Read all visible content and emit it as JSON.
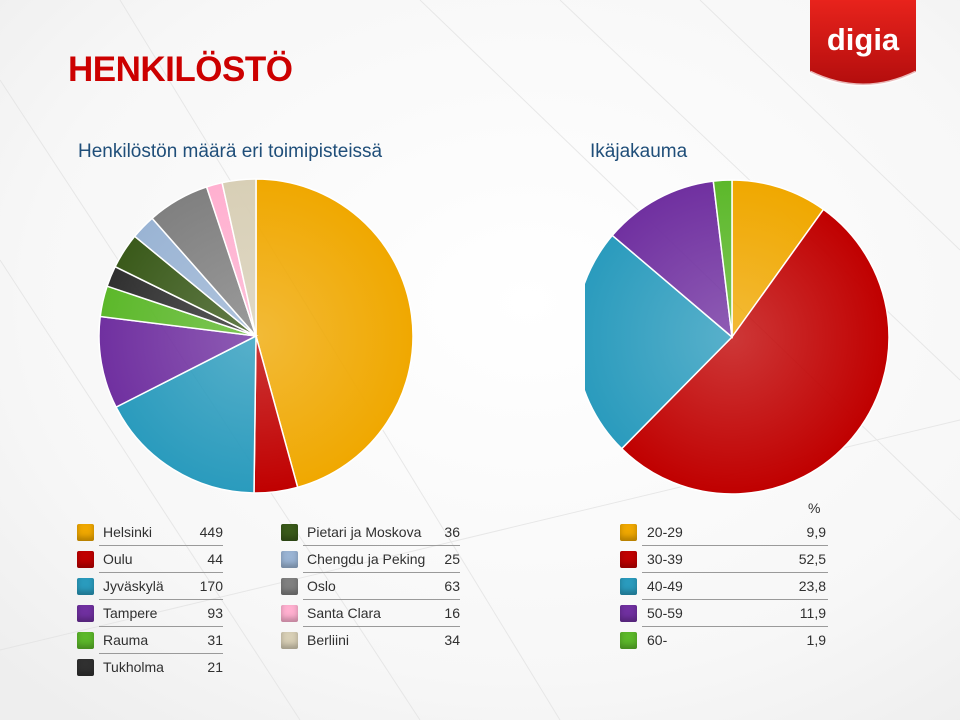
{
  "page": {
    "title": "HENKILÖSTÖ",
    "title_color": "#cc0000",
    "subtitle_color": "#1f4e79"
  },
  "logo": {
    "text": "digia",
    "color": "#d01010"
  },
  "chart_data": [
    {
      "type": "pie",
      "title": "Henkilöstön määrä eri toimipisteissä",
      "slices": [
        {
          "label": "Helsinki",
          "value": 449,
          "color": "#f0a800"
        },
        {
          "label": "Oulu",
          "value": 44,
          "color": "#c00000"
        },
        {
          "label": "Jyväskylä",
          "value": 170,
          "color": "#2a9bbd"
        },
        {
          "label": "Tampere",
          "value": 93,
          "color": "#7030a0"
        },
        {
          "label": "Rauma",
          "value": 31,
          "color": "#5cb82a"
        },
        {
          "label": "Tukholma",
          "value": 21,
          "color": "#303030"
        },
        {
          "label": "Pietari ja Moskova",
          "value": 36,
          "color": "#3a5a1a"
        },
        {
          "label": "Chengdu ja Peking",
          "value": 25,
          "color": "#9ab4d4"
        },
        {
          "label": "Oslo",
          "value": 63,
          "color": "#808080"
        },
        {
          "label": "Santa Clara",
          "value": 16,
          "color": "#ffb0d0"
        },
        {
          "label": "Berliini",
          "value": 34,
          "color": "#d8cfb6"
        }
      ],
      "legend_columns": [
        [
          "Helsinki",
          "Oulu",
          "Jyväskylä",
          "Tampere",
          "Rauma",
          "Tukholma"
        ],
        [
          "Pietari ja Moskova",
          "Chengdu ja Peking",
          "Oslo",
          "Santa Clara",
          "Berliini"
        ]
      ],
      "legend_placement": "bottom"
    },
    {
      "type": "pie",
      "title": "Ikäjakauma",
      "unit": "%",
      "slices": [
        {
          "label": "20-29",
          "value": 9.9,
          "value_label": "9,9",
          "color": "#f0a800"
        },
        {
          "label": "30-39",
          "value": 52.5,
          "value_label": "52,5",
          "color": "#c00000"
        },
        {
          "label": "40-49",
          "value": 23.8,
          "value_label": "23,8",
          "color": "#2a9bbd"
        },
        {
          "label": "50-59",
          "value": 11.9,
          "value_label": "11,9",
          "color": "#7030a0"
        },
        {
          "label": "60-",
          "value": 1.9,
          "value_label": "1,9",
          "color": "#5cb82a"
        }
      ],
      "legend_placement": "bottom"
    }
  ]
}
